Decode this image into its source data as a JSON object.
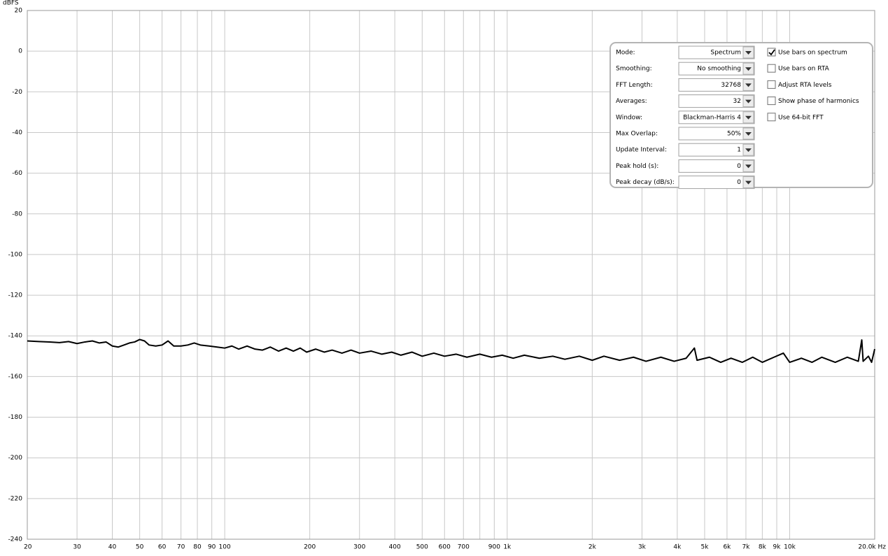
{
  "chart_data": {
    "type": "line",
    "y_label": "dBFS",
    "xlim": [
      20,
      20000
    ],
    "ylim": [
      -240,
      20
    ],
    "log_x": true,
    "grid": true,
    "color": "#000000",
    "xticks": [
      20,
      30,
      40,
      50,
      60,
      70,
      80,
      90,
      100,
      200,
      300,
      400,
      500,
      600,
      700,
      {
        "value": 800,
        "label": null
      },
      900,
      {
        "value": 1000,
        "label": "1k"
      },
      {
        "value": 2000,
        "label": "2k"
      },
      {
        "value": 3000,
        "label": "3k"
      },
      {
        "value": 4000,
        "label": "4k"
      },
      {
        "value": 5000,
        "label": "5k"
      },
      {
        "value": 6000,
        "label": "6k"
      },
      {
        "value": 7000,
        "label": "7k"
      },
      {
        "value": 8000,
        "label": "8k"
      },
      {
        "value": 9000,
        "label": "9k"
      },
      {
        "value": 10000,
        "label": "10k"
      },
      {
        "value": 20000,
        "label": "20.0k Hz"
      }
    ],
    "yticks": [
      20,
      0,
      -20,
      -40,
      -60,
      -80,
      -100,
      -120,
      -140,
      -160,
      -180,
      -200,
      -220,
      -240
    ],
    "x": [
      20,
      22,
      24,
      26,
      28,
      30,
      32,
      34,
      36,
      38,
      40,
      42,
      44,
      46,
      48,
      50,
      52,
      54,
      57,
      60,
      63,
      66,
      70,
      74,
      78,
      82,
      88,
      94,
      100,
      106,
      112,
      120,
      128,
      136,
      145,
      155,
      165,
      175,
      185,
      195,
      210,
      225,
      240,
      260,
      280,
      300,
      330,
      360,
      390,
      420,
      460,
      500,
      550,
      600,
      660,
      720,
      800,
      880,
      960,
      1050,
      1150,
      1300,
      1450,
      1600,
      1800,
      2000,
      2200,
      2500,
      2800,
      3100,
      3500,
      3900,
      4300,
      4600,
      4700,
      5200,
      5700,
      6200,
      6800,
      7400,
      8000,
      8800,
      9500,
      10000,
      11000,
      12000,
      13000,
      14500,
      16000,
      17500,
      18000,
      18200,
      19000,
      19500,
      20000
    ],
    "values": [
      -142.5,
      -142.8,
      -143,
      -143.3,
      -142.8,
      -143.8,
      -143,
      -142.5,
      -143.5,
      -143,
      -145,
      -145.5,
      -144.5,
      -143.5,
      -143,
      -141.8,
      -142.5,
      -144.5,
      -145,
      -144.5,
      -142.5,
      -145,
      -145,
      -144.5,
      -143.5,
      -144.5,
      -145,
      -145.5,
      -146,
      -145,
      -146.5,
      -145,
      -146.5,
      -147,
      -145.5,
      -147.5,
      -146,
      -147.5,
      -146,
      -148,
      -146.5,
      -148,
      -147,
      -148.5,
      -147,
      -148.5,
      -147.5,
      -149,
      -148,
      -149.5,
      -148,
      -150,
      -148.5,
      -150,
      -149,
      -150.5,
      -149,
      -150.5,
      -149.5,
      -151,
      -149.5,
      -151,
      -150,
      -151.5,
      -150,
      -152,
      -150,
      -152,
      -150.5,
      -152.5,
      -150.5,
      -152.5,
      -151,
      -146,
      -152,
      -150.5,
      -153,
      -151,
      -153,
      -150.5,
      -153,
      -150.5,
      -148.5,
      -153,
      -151,
      -153,
      -150.5,
      -153,
      -150.5,
      -152.5,
      -142,
      -152.5,
      -150,
      -153,
      -146.5
    ]
  },
  "settings_panel": {
    "fields": [
      {
        "label": "Mode:",
        "value": "Spectrum"
      },
      {
        "label": "Smoothing:",
        "value": "No  smoothing"
      },
      {
        "label": "FFT Length:",
        "value": "32768"
      },
      {
        "label": "Averages:",
        "value": "32"
      },
      {
        "label": "Window:",
        "value": "Blackman-Harris 4"
      },
      {
        "label": "Max Overlap:",
        "value": "50%"
      },
      {
        "label": "Update Interval:",
        "value": "1"
      },
      {
        "label": "Peak hold (s):",
        "value": "0"
      },
      {
        "label": "Peak decay (dB/s):",
        "value": "0"
      }
    ],
    "checkboxes": [
      {
        "label": "Use bars on spectrum",
        "checked": true
      },
      {
        "label": "Use bars on RTA",
        "checked": false
      },
      {
        "label": "Adjust RTA levels",
        "checked": false
      },
      {
        "label": "Show phase of harmonics",
        "checked": false
      },
      {
        "label": "Use 64-bit FFT",
        "checked": false
      }
    ]
  }
}
